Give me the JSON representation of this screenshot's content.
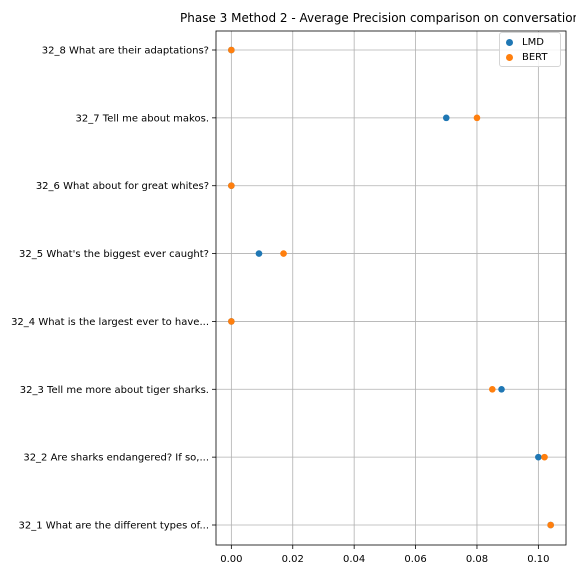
{
  "chart_data": {
    "type": "scatter",
    "title": "Phase 3 Method 2 - Average Precision comparison on conversation",
    "xlabel": "",
    "ylabel": "",
    "xlim": [
      -0.005,
      0.109
    ],
    "xticks": [
      0.0,
      0.02,
      0.04,
      0.06,
      0.08,
      0.1
    ],
    "xtick_labels": [
      "0.00",
      "0.02",
      "0.04",
      "0.06",
      "0.08",
      "0.10"
    ],
    "grid": true,
    "legend_position": "top-right",
    "categories": [
      "32_1 What are the different types of...",
      "32_2 Are sharks endangered? If so,...",
      "32_3 Tell me more about tiger sharks.",
      "32_4 What is the largest ever to have...",
      "32_5 What's the biggest ever caught?",
      "32_6 What about for great whites?",
      "32_7 Tell me about makos.",
      "32_8 What are their adaptations?"
    ],
    "series": [
      {
        "name": "LMD",
        "color": "#1f77b4",
        "values": [
          0.104,
          0.1,
          0.088,
          0.0,
          0.009,
          0.0,
          0.07,
          0.0
        ]
      },
      {
        "name": "BERT",
        "color": "#ff7f0e",
        "values": [
          0.104,
          0.102,
          0.085,
          0.0,
          0.017,
          0.0,
          0.08,
          0.0
        ]
      }
    ]
  }
}
